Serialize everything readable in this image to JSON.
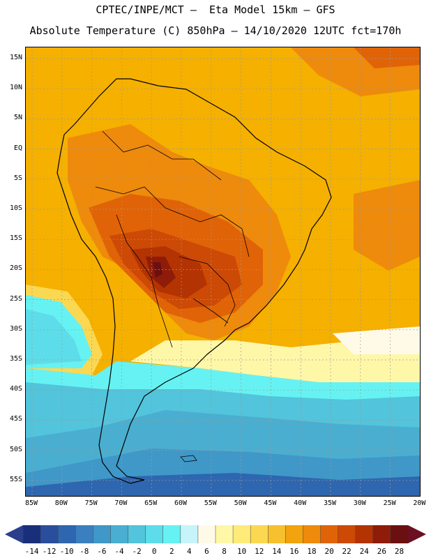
{
  "header": {
    "line1": "CPTEC/INPE/MCT —  Eta Model 15km — GFS",
    "line2": "Absolute Temperature (C) 850hPa — 14/10/2020 12UTC fct=170h"
  },
  "map": {
    "lat_labels": [
      "15N",
      "10N",
      "5N",
      "EQ",
      "5S",
      "10S",
      "15S",
      "20S",
      "25S",
      "30S",
      "35S",
      "40S",
      "45S",
      "50S",
      "55S"
    ],
    "lon_labels": [
      "85W",
      "80W",
      "75W",
      "70W",
      "65W",
      "60W",
      "55W",
      "50W",
      "45W",
      "40W",
      "35W",
      "30W",
      "25W",
      "20W"
    ],
    "region": "South America"
  },
  "colorbar": {
    "labels": [
      "-14",
      "-12",
      "-10",
      "-8",
      "-6",
      "-4",
      "-2",
      "0",
      "2",
      "4",
      "6",
      "8",
      "10",
      "12",
      "14",
      "16",
      "18",
      "20",
      "22",
      "24",
      "26",
      "28"
    ],
    "colors": [
      "#1a2f7a",
      "#2a4e9c",
      "#2f66b0",
      "#3a80c0",
      "#3f98c8",
      "#4aaed0",
      "#52c4dc",
      "#5ddde9",
      "#66f2f2",
      "#c7f4fb",
      "#fffae8",
      "#fff7a8",
      "#ffeb7a",
      "#fbd852",
      "#f6c02e",
      "#f2a30d",
      "#ee8a0c",
      "#e06307",
      "#cc4a05",
      "#b33302",
      "#8e1c08",
      "#6b1010"
    ],
    "min_arrow_color": "#2a3e8c",
    "max_arrow_color": "#6b0f22"
  }
}
